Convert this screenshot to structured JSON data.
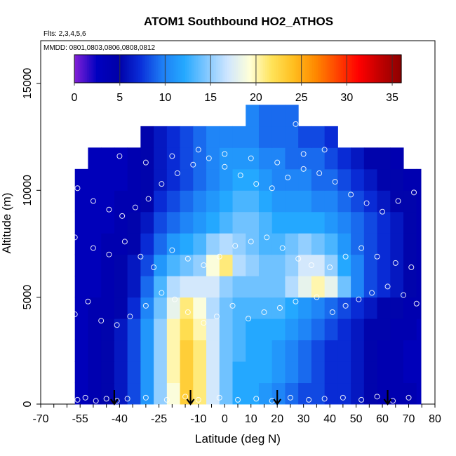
{
  "chart_data": {
    "type": "heatmap",
    "title": "ATOM1 Southbound HO2_ATHOS",
    "flights_label": "Flts: 2,3,4,5,6",
    "dates_label": "MMDD: 0801,0803,0806,0808,0812",
    "xlabel": "Latitude (deg N)",
    "ylabel": "Altitude (m)",
    "xlim": [
      -70,
      80
    ],
    "ylim": [
      0,
      17000
    ],
    "x_ticks": [
      "-70",
      "-55",
      "-40",
      "-25",
      "-10",
      "0",
      "10",
      "20",
      "30",
      "40",
      "50",
      "60",
      "70",
      "80"
    ],
    "y_ticks": [
      "0",
      "5000",
      "10000",
      "15000"
    ],
    "colorbar": {
      "range": [
        0,
        36
      ],
      "ticks": [
        "0",
        "5",
        "10",
        "15",
        "20",
        "25",
        "30",
        "35"
      ],
      "colors": [
        "#7f1fd6",
        "#0000c0",
        "#0000a8",
        "#0a2fd9",
        "#1e7ef5",
        "#24a8ff",
        "#7fc7ff",
        "#cfe6ff",
        "#ffffd8",
        "#ffe35a",
        "#ffbf20",
        "#ff8a00",
        "#ff4500",
        "#ff0000",
        "#c00000",
        "#8a0000"
      ]
    },
    "arrows_lat": [
      -42,
      -13,
      20,
      62
    ],
    "grid": {
      "lat_start": -57,
      "lat_step": 5,
      "alt_start": 0,
      "alt_step": 1000,
      "note_rows": "rows from 0 m upward, columns from -57 deg N",
      "rows": [
        [
          3,
          4,
          5,
          6,
          8,
          11,
          15,
          19,
          23,
          21,
          17,
          14,
          12,
          12,
          11,
          10,
          9,
          8,
          8,
          7,
          7,
          6,
          5,
          4,
          4,
          4,
          3
        ],
        [
          3,
          4,
          5,
          6,
          8,
          11,
          15,
          20,
          23,
          21,
          17,
          14,
          12,
          12,
          12,
          11,
          10,
          9,
          8,
          7,
          7,
          6,
          5,
          4,
          4,
          3,
          3
        ],
        [
          3,
          4,
          5,
          6,
          8,
          11,
          15,
          20,
          23,
          21,
          17,
          14,
          13,
          12,
          12,
          11,
          10,
          9,
          8,
          7,
          7,
          6,
          5,
          4,
          4,
          3,
          3
        ],
        [
          3,
          4,
          5,
          6,
          8,
          11,
          15,
          20,
          22,
          20,
          17,
          14,
          13,
          12,
          12,
          12,
          11,
          10,
          9,
          8,
          7,
          6,
          5,
          5,
          4,
          4,
          3
        ],
        [
          3,
          4,
          4,
          5,
          7,
          10,
          14,
          18,
          21,
          19,
          16,
          14,
          13,
          13,
          13,
          13,
          12,
          11,
          10,
          9,
          8,
          7,
          6,
          5,
          5,
          4,
          4
        ],
        [
          3,
          3,
          4,
          5,
          6,
          9,
          13,
          16,
          17,
          17,
          17,
          15,
          14,
          14,
          14,
          14,
          16,
          18,
          20,
          18,
          14,
          10,
          8,
          7,
          6,
          5,
          4
        ],
        [
          3,
          3,
          4,
          5,
          6,
          8,
          11,
          13,
          14,
          15,
          19,
          21,
          16,
          15,
          14,
          14,
          15,
          17,
          17,
          15,
          12,
          10,
          8,
          7,
          6,
          5,
          4
        ],
        [
          3,
          3,
          4,
          4,
          5,
          7,
          9,
          11,
          12,
          13,
          15,
          16,
          15,
          14,
          13,
          13,
          14,
          15,
          14,
          13,
          11,
          9,
          8,
          7,
          6,
          5,
          4
        ],
        [
          3,
          3,
          3,
          4,
          5,
          6,
          8,
          9,
          10,
          11,
          12,
          13,
          14,
          14,
          13,
          12,
          12,
          12,
          12,
          11,
          10,
          9,
          8,
          7,
          6,
          5,
          4
        ],
        [
          3,
          3,
          3,
          4,
          4,
          5,
          7,
          8,
          9,
          10,
          11,
          12,
          13,
          13,
          12,
          11,
          11,
          11,
          10,
          10,
          9,
          8,
          7,
          6,
          5,
          5,
          4
        ],
        [
          3,
          3,
          3,
          3,
          4,
          5,
          6,
          7,
          8,
          9,
          10,
          11,
          12,
          12,
          11,
          10,
          10,
          10,
          9,
          9,
          8,
          7,
          6,
          5,
          5,
          4,
          4
        ],
        [
          null,
          3,
          3,
          3,
          4,
          5,
          6,
          7,
          8,
          9,
          10,
          11,
          11,
          11,
          10,
          10,
          9,
          9,
          9,
          8,
          7,
          6,
          5,
          5,
          4,
          null,
          null
        ],
        [
          null,
          null,
          null,
          null,
          null,
          5,
          6,
          7,
          8,
          9,
          10,
          10,
          10,
          10,
          9,
          9,
          9,
          8,
          8,
          7,
          null,
          null,
          null,
          null,
          null,
          null,
          null
        ],
        [
          null,
          null,
          null,
          null,
          null,
          null,
          null,
          null,
          null,
          null,
          null,
          null,
          null,
          10,
          9,
          9,
          9,
          null,
          null,
          null,
          null,
          null,
          null,
          null,
          null,
          null,
          null
        ]
      ]
    },
    "points": [
      [
        -56,
        200
      ],
      [
        -53,
        300
      ],
      [
        -49,
        150
      ],
      [
        -45,
        250
      ],
      [
        -41,
        150
      ],
      [
        -37,
        250
      ],
      [
        -30,
        300
      ],
      [
        -22,
        200
      ],
      [
        -15,
        350
      ],
      [
        -10,
        200
      ],
      [
        -2,
        300
      ],
      [
        5,
        200
      ],
      [
        12,
        250
      ],
      [
        18,
        150
      ],
      [
        25,
        300
      ],
      [
        32,
        200
      ],
      [
        38,
        250
      ],
      [
        45,
        300
      ],
      [
        52,
        200
      ],
      [
        58,
        350
      ],
      [
        64,
        150
      ],
      [
        70,
        300
      ],
      [
        77,
        250
      ],
      [
        -57,
        4200
      ],
      [
        -52,
        4800
      ],
      [
        -47,
        3900
      ],
      [
        -41,
        3700
      ],
      [
        -36,
        4100
      ],
      [
        -30,
        4600
      ],
      [
        -24,
        5200
      ],
      [
        -19,
        4900
      ],
      [
        -14,
        4300
      ],
      [
        -8,
        3800
      ],
      [
        -3,
        4100
      ],
      [
        3,
        4600
      ],
      [
        9,
        4000
      ],
      [
        15,
        4300
      ],
      [
        21,
        4500
      ],
      [
        27,
        4800
      ],
      [
        35,
        5000
      ],
      [
        41,
        4300
      ],
      [
        46,
        4600
      ],
      [
        51,
        4900
      ],
      [
        56,
        5200
      ],
      [
        62,
        5500
      ],
      [
        68,
        5100
      ],
      [
        73,
        4700
      ],
      [
        78,
        4900
      ],
      [
        -57,
        7800
      ],
      [
        -50,
        7300
      ],
      [
        -44,
        7000
      ],
      [
        -38,
        7600
      ],
      [
        -32,
        6900
      ],
      [
        -27,
        6400
      ],
      [
        -20,
        7200
      ],
      [
        -14,
        6800
      ],
      [
        -8,
        6500
      ],
      [
        -2,
        6900
      ],
      [
        4,
        7400
      ],
      [
        10,
        7600
      ],
      [
        16,
        7800
      ],
      [
        22,
        7300
      ],
      [
        28,
        6800
      ],
      [
        33,
        6500
      ],
      [
        40,
        6400
      ],
      [
        46,
        6900
      ],
      [
        52,
        7300
      ],
      [
        58,
        6900
      ],
      [
        65,
        6600
      ],
      [
        71,
        6400
      ],
      [
        -56,
        10100
      ],
      [
        -50,
        9500
      ],
      [
        -44,
        9100
      ],
      [
        -39,
        8800
      ],
      [
        -34,
        9200
      ],
      [
        -29,
        9600
      ],
      [
        -24,
        10300
      ],
      [
        -18,
        10800
      ],
      [
        -12,
        11200
      ],
      [
        -6,
        11500
      ],
      [
        0,
        11100
      ],
      [
        6,
        10700
      ],
      [
        12,
        10300
      ],
      [
        18,
        10100
      ],
      [
        24,
        10600
      ],
      [
        30,
        11000
      ],
      [
        36,
        10800
      ],
      [
        42,
        10400
      ],
      [
        48,
        9800
      ],
      [
        54,
        9400
      ],
      [
        60,
        9000
      ],
      [
        66,
        9500
      ],
      [
        72,
        9900
      ],
      [
        -40,
        11600
      ],
      [
        -30,
        11300
      ],
      [
        -20,
        11600
      ],
      [
        -10,
        11900
      ],
      [
        0,
        11700
      ],
      [
        10,
        11500
      ],
      [
        20,
        11300
      ],
      [
        30,
        11700
      ],
      [
        38,
        11900
      ],
      [
        27,
        13100
      ]
    ]
  }
}
